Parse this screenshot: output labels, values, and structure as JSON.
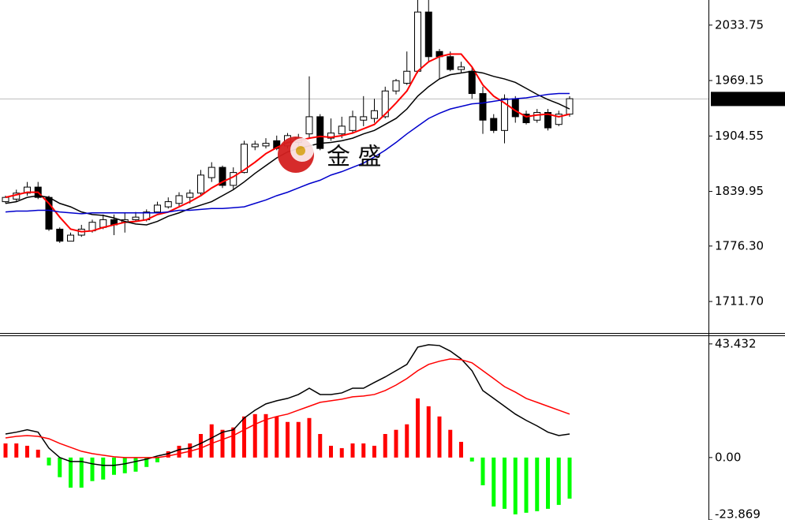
{
  "chart_data": [
    {
      "type": "candlestick",
      "open": [
        1828,
        1831,
        1838,
        1845,
        1833,
        1796,
        1782,
        1789,
        1794,
        1798,
        1807,
        1804,
        1807,
        1807,
        1816,
        1822,
        1826,
        1833,
        1838,
        1856,
        1868,
        1847,
        1862,
        1892,
        1893,
        1899,
        1893,
        1897,
        1907,
        1927,
        1902,
        1907,
        1911,
        1923,
        1925,
        1927,
        1957,
        1966,
        1980,
        2049,
        2003,
        1997,
        1982,
        1980,
        1954,
        1925,
        1911,
        1948,
        1930,
        1923,
        1932,
        1918,
        1930
      ],
      "high": [
        1835,
        1842,
        1851,
        1851,
        1835,
        1798,
        1792,
        1801,
        1807,
        1813,
        1813,
        1815,
        1816,
        1819,
        1828,
        1833,
        1839,
        1842,
        1865,
        1874,
        1870,
        1868,
        1899,
        1899,
        1902,
        1905,
        1908,
        1907,
        1974,
        1930,
        1925,
        1927,
        1934,
        1951,
        1948,
        1962,
        1971,
        2003,
        2063,
        2063,
        2006,
        2003,
        1991,
        1985,
        1962,
        1930,
        1953,
        1951,
        1934,
        1936,
        1936,
        1934,
        1951
      ],
      "low": [
        1826,
        1828,
        1835,
        1831,
        1794,
        1780,
        1782,
        1787,
        1792,
        1796,
        1789,
        1792,
        1805,
        1805,
        1815,
        1820,
        1822,
        1826,
        1835,
        1851,
        1844,
        1842,
        1861,
        1888,
        1890,
        1888,
        1890,
        1893,
        1902,
        1888,
        1899,
        1902,
        1907,
        1916,
        1920,
        1925,
        1953,
        1964,
        1978,
        1991,
        1971,
        1980,
        1978,
        1948,
        1907,
        1908,
        1896,
        1920,
        1918,
        1920,
        1911,
        1916,
        1927
      ],
      "close": [
        1833,
        1838,
        1845,
        1833,
        1796,
        1782,
        1789,
        1796,
        1804,
        1807,
        1801,
        1807,
        1810,
        1816,
        1824,
        1828,
        1835,
        1838,
        1859,
        1868,
        1847,
        1862,
        1895,
        1895,
        1896,
        1890,
        1905,
        1902,
        1927,
        1890,
        1908,
        1916,
        1927,
        1927,
        1934,
        1957,
        1969,
        1980,
        2049,
        1997,
        1997,
        1982,
        1985,
        1954,
        1923,
        1911,
        1948,
        1927,
        1920,
        1932,
        1914,
        1930,
        1948
      ],
      "up_color": "#ffffff",
      "down_color": "#000000",
      "lines": [
        {
          "color": "#ff0000",
          "values": [
            1833,
            1836,
            1839,
            1839,
            1826,
            1810,
            1796,
            1793,
            1794,
            1798,
            1801,
            1804,
            1805,
            1807,
            1813,
            1816,
            1822,
            1828,
            1835,
            1844,
            1851,
            1857,
            1865,
            1874,
            1884,
            1891,
            1897,
            1899,
            1902,
            1904,
            1903,
            1905,
            1908,
            1913,
            1918,
            1930,
            1943,
            1957,
            1980,
            1991,
            1997,
            2000,
            2000,
            1985,
            1964,
            1951,
            1943,
            1934,
            1927,
            1929,
            1930,
            1927,
            1930
          ]
        },
        {
          "color": "#000000",
          "values": [
            1826,
            1828,
            1833,
            1835,
            1833,
            1826,
            1822,
            1816,
            1813,
            1812,
            1809,
            1805,
            1802,
            1801,
            1805,
            1811,
            1815,
            1820,
            1824,
            1828,
            1835,
            1842,
            1851,
            1861,
            1870,
            1879,
            1886,
            1890,
            1893,
            1896,
            1897,
            1899,
            1902,
            1907,
            1911,
            1918,
            1925,
            1936,
            1951,
            1962,
            1971,
            1976,
            1978,
            1980,
            1978,
            1974,
            1971,
            1967,
            1960,
            1953,
            1947,
            1942,
            1936
          ]
        },
        {
          "color": "#0000cc",
          "values": [
            1816,
            1817,
            1817,
            1818,
            1818,
            1816,
            1815,
            1814,
            1815,
            1815,
            1815,
            1815,
            1815,
            1815,
            1815,
            1816,
            1818,
            1818,
            1819,
            1820,
            1820,
            1821,
            1822,
            1826,
            1830,
            1835,
            1839,
            1844,
            1849,
            1853,
            1859,
            1863,
            1868,
            1873,
            1880,
            1888,
            1897,
            1907,
            1916,
            1925,
            1931,
            1936,
            1939,
            1942,
            1943,
            1945,
            1947,
            1948,
            1949,
            1951,
            1953,
            1954,
            1954
          ]
        }
      ],
      "ylim": [
        1675,
        2063
      ],
      "yticks": [
        2033.75,
        1969.15,
        1904.55,
        1839.95,
        {
          "value": 1776.3,
          "label": "1776.30"
        },
        {
          "value": 1711.7,
          "label": "1711.70"
        }
      ],
      "last_price": {
        "value": 1947.7,
        "label": "1947.70"
      },
      "watermark": "金 盛"
    },
    {
      "type": "macd",
      "histogram": [
        5.4,
        5.4,
        4.5,
        3.0,
        -3.0,
        -7.5,
        -11.5,
        -11.5,
        -9.0,
        -8.4,
        -6.6,
        -6.0,
        -5.4,
        -3.6,
        -1.8,
        2.4,
        4.5,
        5.4,
        9.0,
        12.7,
        10.6,
        11.5,
        15.7,
        16.6,
        16.6,
        15.7,
        13.6,
        13.6,
        15.1,
        9.0,
        4.5,
        3.6,
        5.4,
        5.4,
        4.5,
        9.0,
        10.6,
        12.7,
        22.6,
        19.6,
        15.7,
        10.6,
        6.0,
        -1.5,
        -10.6,
        -18.7,
        -19.6,
        -21.7,
        -21.1,
        -20.5,
        -19.6,
        -18.1,
        -15.7
      ],
      "positive_color": "#ff0000",
      "negative_color": "#00ff00",
      "lines": [
        {
          "color": "#000000",
          "values": [
            9.0,
            9.7,
            10.6,
            9.7,
            3.6,
            0,
            -1.5,
            -1.5,
            -2.4,
            -3.0,
            -3.0,
            -2.4,
            -1.5,
            -0.6,
            0.6,
            1.5,
            3.0,
            3.6,
            5.4,
            7.5,
            9.7,
            10.6,
            15.1,
            18.1,
            20.5,
            21.7,
            22.6,
            24.1,
            26.5,
            24.1,
            24.1,
            24.7,
            26.5,
            26.5,
            28.7,
            30.8,
            33.2,
            35.6,
            42.2,
            43.1,
            42.8,
            40.7,
            37.7,
            33.2,
            25.6,
            22.6,
            19.6,
            16.6,
            14.2,
            12.1,
            9.7,
            8.4,
            9.0
          ]
        },
        {
          "color": "#ff0000",
          "values": [
            7.5,
            8.1,
            8.4,
            8.1,
            7.2,
            5.4,
            3.9,
            2.4,
            1.5,
            0.9,
            0.3,
            0,
            0,
            0,
            0,
            0.6,
            1.5,
            2.4,
            3.6,
            5.4,
            6.9,
            8.4,
            10.6,
            12.7,
            14.5,
            15.7,
            16.6,
            18.1,
            19.6,
            21.1,
            21.7,
            22.3,
            23.2,
            23.5,
            24.1,
            25.6,
            27.7,
            30.2,
            33.2,
            35.6,
            36.8,
            37.7,
            37.4,
            36.2,
            33.2,
            30.2,
            27.1,
            25.0,
            22.6,
            21.1,
            19.6,
            18.1,
            16.6
          ]
        }
      ],
      "ylim": [
        -23.869,
        46.7
      ],
      "yticks": [
        43.432,
        {
          "value": 0,
          "label": "0.00"
        },
        -23.869
      ]
    }
  ]
}
